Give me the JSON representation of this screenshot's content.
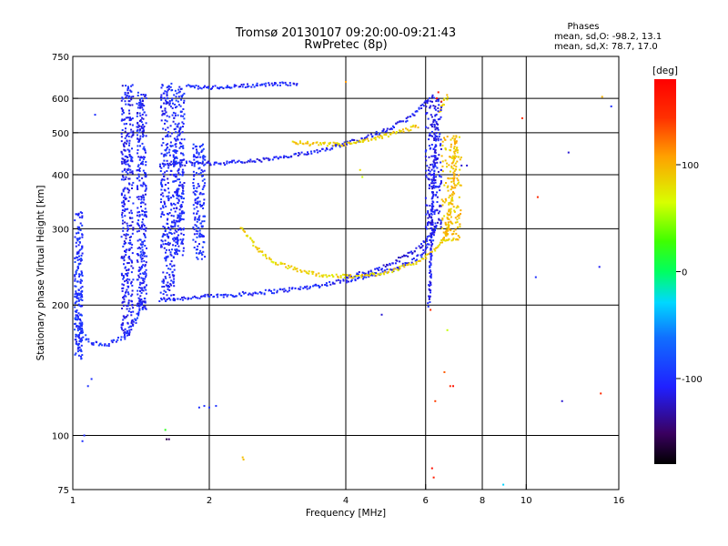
{
  "chart_data": {
    "type": "scatter",
    "title": "Tromsø 20130107 09:20:00-09:21:43",
    "subtitle": "RwPretec (8p)",
    "xlabel": "Frequency [MHz]",
    "ylabel": "Stationary phase Virtual Height [km]",
    "x_scale": "log",
    "y_scale": "log",
    "xlim": [
      1,
      16
    ],
    "ylim": [
      75,
      750
    ],
    "x_ticks": [
      1,
      2,
      4,
      6,
      8,
      10,
      16
    ],
    "x_tick_labels": [
      "1",
      "2",
      "4",
      "6",
      "8",
      "10",
      "16"
    ],
    "y_ticks": [
      75,
      100,
      200,
      300,
      400,
      500,
      600,
      750
    ],
    "y_tick_labels": [
      "75",
      "100",
      "200",
      "300",
      "400",
      "500",
      "600",
      "750"
    ],
    "x_gridlines": [
      2,
      4,
      6,
      8,
      10
    ],
    "y_gridlines": [
      100,
      200,
      300,
      400,
      500,
      600
    ],
    "grid": true,
    "phase_stats": {
      "heading": "Phases",
      "line_o": "mean, sd,O: -98.2, 13.1",
      "line_x": "mean, sd,X:  78.7, 17.0"
    },
    "colorbar": {
      "label": "[deg]",
      "min": -180,
      "max": 180,
      "tick_values": [
        100,
        0,
        -100
      ],
      "tick_labels": [
        "100",
        "0",
        "-100"
      ]
    },
    "traces": [
      {
        "kind": "line",
        "phase": -105,
        "jitter": 0.022,
        "points": [
          [
            1.55,
            205
          ],
          [
            1.8,
            208
          ],
          [
            2.1,
            210
          ],
          [
            2.5,
            213
          ],
          [
            3.0,
            217
          ],
          [
            3.5,
            222
          ],
          [
            4.0,
            228
          ],
          [
            4.5,
            233
          ],
          [
            5.0,
            240
          ],
          [
            5.5,
            250
          ],
          [
            5.9,
            262
          ],
          [
            6.2,
            285
          ],
          [
            6.35,
            310
          ]
        ]
      },
      {
        "kind": "line",
        "phase": -112,
        "jitter": 0.022,
        "points": [
          [
            4.0,
            233
          ],
          [
            4.5,
            238
          ],
          [
            5.0,
            248
          ],
          [
            5.5,
            262
          ],
          [
            5.9,
            275
          ],
          [
            6.15,
            290
          ],
          [
            6.3,
            300
          ]
        ]
      },
      {
        "kind": "line",
        "phase": -108,
        "jitter": 0.02,
        "points": [
          [
            1.55,
            420
          ],
          [
            1.8,
            425
          ],
          [
            2.1,
            425
          ],
          [
            2.5,
            430
          ],
          [
            3.0,
            440
          ],
          [
            3.5,
            455
          ],
          [
            4.0,
            472
          ],
          [
            4.5,
            490
          ],
          [
            5.0,
            510
          ],
          [
            5.5,
            540
          ],
          [
            5.85,
            570
          ],
          [
            6.1,
            595
          ],
          [
            6.3,
            610
          ]
        ]
      },
      {
        "kind": "line",
        "phase": -102,
        "jitter": 0.018,
        "points": [
          [
            1.78,
            640
          ],
          [
            2.0,
            635
          ],
          [
            2.3,
            640
          ],
          [
            2.6,
            645
          ],
          [
            2.9,
            648
          ],
          [
            3.15,
            650
          ]
        ]
      },
      {
        "kind": "line",
        "phase": 85,
        "jitter": 0.02,
        "points": [
          [
            2.35,
            300
          ],
          [
            2.45,
            285
          ],
          [
            2.6,
            265
          ],
          [
            2.8,
            250
          ],
          [
            3.1,
            242
          ],
          [
            3.4,
            236
          ],
          [
            3.8,
            233
          ],
          [
            4.3,
            233
          ],
          [
            4.8,
            237
          ],
          [
            5.4,
            245
          ],
          [
            5.9,
            255
          ],
          [
            6.3,
            268
          ],
          [
            6.6,
            285
          ],
          [
            6.8,
            300
          ]
        ]
      },
      {
        "kind": "line",
        "phase": 95,
        "jitter": 0.025,
        "points": [
          [
            6.6,
            285
          ],
          [
            6.75,
            320
          ],
          [
            6.85,
            360
          ],
          [
            6.95,
            410
          ],
          [
            7.0,
            460
          ],
          [
            6.95,
            500
          ]
        ]
      },
      {
        "kind": "line",
        "phase": 88,
        "jitter": 0.02,
        "points": [
          [
            3.05,
            475
          ],
          [
            3.5,
            470
          ],
          [
            4.0,
            470
          ],
          [
            4.5,
            480
          ],
          [
            5.0,
            495
          ],
          [
            5.5,
            510
          ],
          [
            5.8,
            520
          ]
        ]
      },
      {
        "kind": "line",
        "phase": 90,
        "jitter": 0.02,
        "points": [
          [
            6.45,
            560
          ],
          [
            6.6,
            590
          ],
          [
            6.75,
            610
          ]
        ]
      },
      {
        "kind": "line",
        "phase": -110,
        "jitter": 0.02,
        "points": [
          [
            6.1,
            200
          ],
          [
            6.15,
            250
          ],
          [
            6.2,
            320
          ],
          [
            6.25,
            400
          ],
          [
            6.3,
            480
          ],
          [
            6.32,
            540
          ]
        ]
      },
      {
        "kind": "line",
        "phase": -100,
        "jitter": 0.025,
        "points": [
          [
            1.02,
            190
          ],
          [
            1.05,
            172
          ],
          [
            1.1,
            163
          ],
          [
            1.2,
            163
          ],
          [
            1.3,
            168
          ],
          [
            1.38,
            185
          ],
          [
            1.45,
            205
          ]
        ]
      },
      {
        "kind": "column",
        "phase": -108,
        "x": 1.32,
        "dx": 0.03,
        "y0": 170,
        "y1": 645
      },
      {
        "kind": "column",
        "phase": -106,
        "x": 1.42,
        "dx": 0.025,
        "y0": 195,
        "y1": 620
      },
      {
        "kind": "column",
        "phase": -104,
        "x": 1.62,
        "dx": 0.035,
        "y0": 205,
        "y1": 650
      },
      {
        "kind": "column",
        "phase": -102,
        "x": 1.72,
        "dx": 0.025,
        "y0": 260,
        "y1": 640
      },
      {
        "kind": "column",
        "phase": -100,
        "x": 1.03,
        "dx": 0.02,
        "y0": 150,
        "y1": 330
      },
      {
        "kind": "column",
        "phase": -100,
        "x": 1.9,
        "dx": 0.03,
        "y0": 255,
        "y1": 470
      },
      {
        "kind": "column",
        "phase": -110,
        "x": 6.25,
        "dx": 0.04,
        "y0": 300,
        "y1": 600
      },
      {
        "kind": "column",
        "phase": 92,
        "x": 6.85,
        "dx": 0.05,
        "y0": 280,
        "y1": 490
      }
    ],
    "isolated_points": [
      {
        "x": 1.05,
        "y": 97,
        "phase": -100
      },
      {
        "x": 1.06,
        "y": 100,
        "phase": -100
      },
      {
        "x": 1.08,
        "y": 130,
        "phase": -98
      },
      {
        "x": 1.1,
        "y": 135,
        "phase": -98
      },
      {
        "x": 1.12,
        "y": 550,
        "phase": -100
      },
      {
        "x": 1.6,
        "y": 103,
        "phase": 20
      },
      {
        "x": 1.61,
        "y": 98,
        "phase": -160
      },
      {
        "x": 1.63,
        "y": 98,
        "phase": -150
      },
      {
        "x": 1.9,
        "y": 116,
        "phase": -100
      },
      {
        "x": 1.95,
        "y": 117,
        "phase": -100
      },
      {
        "x": 2.0,
        "y": 116,
        "phase": -100
      },
      {
        "x": 2.07,
        "y": 117,
        "phase": -98
      },
      {
        "x": 2.37,
        "y": 89,
        "phase": 95
      },
      {
        "x": 2.38,
        "y": 88,
        "phase": 95
      },
      {
        "x": 4.0,
        "y": 655,
        "phase": 110
      },
      {
        "x": 4.3,
        "y": 410,
        "phase": 80
      },
      {
        "x": 4.35,
        "y": 395,
        "phase": 60
      },
      {
        "x": 4.8,
        "y": 190,
        "phase": -120
      },
      {
        "x": 6.15,
        "y": 195,
        "phase": 150
      },
      {
        "x": 6.2,
        "y": 84,
        "phase": 170
      },
      {
        "x": 6.25,
        "y": 80,
        "phase": 160
      },
      {
        "x": 6.3,
        "y": 120,
        "phase": 140
      },
      {
        "x": 6.6,
        "y": 140,
        "phase": 130
      },
      {
        "x": 6.7,
        "y": 175,
        "phase": 60
      },
      {
        "x": 6.8,
        "y": 130,
        "phase": 150
      },
      {
        "x": 6.9,
        "y": 130,
        "phase": 170
      },
      {
        "x": 7.2,
        "y": 420,
        "phase": -120
      },
      {
        "x": 7.4,
        "y": 420,
        "phase": -120
      },
      {
        "x": 8.9,
        "y": 77,
        "phase": -30
      },
      {
        "x": 9.8,
        "y": 540,
        "phase": 150
      },
      {
        "x": 10.6,
        "y": 355,
        "phase": 150
      },
      {
        "x": 10.5,
        "y": 232,
        "phase": -100
      },
      {
        "x": 12.0,
        "y": 120,
        "phase": -120
      },
      {
        "x": 12.4,
        "y": 450,
        "phase": -120
      },
      {
        "x": 14.5,
        "y": 245,
        "phase": -110
      },
      {
        "x": 14.6,
        "y": 125,
        "phase": 150
      },
      {
        "x": 14.7,
        "y": 605,
        "phase": 100
      },
      {
        "x": 15.4,
        "y": 575,
        "phase": -100
      },
      {
        "x": 6.4,
        "y": 620,
        "phase": 165
      },
      {
        "x": 6.35,
        "y": 600,
        "phase": 175
      },
      {
        "x": 6.5,
        "y": 590,
        "phase": 150
      }
    ]
  }
}
